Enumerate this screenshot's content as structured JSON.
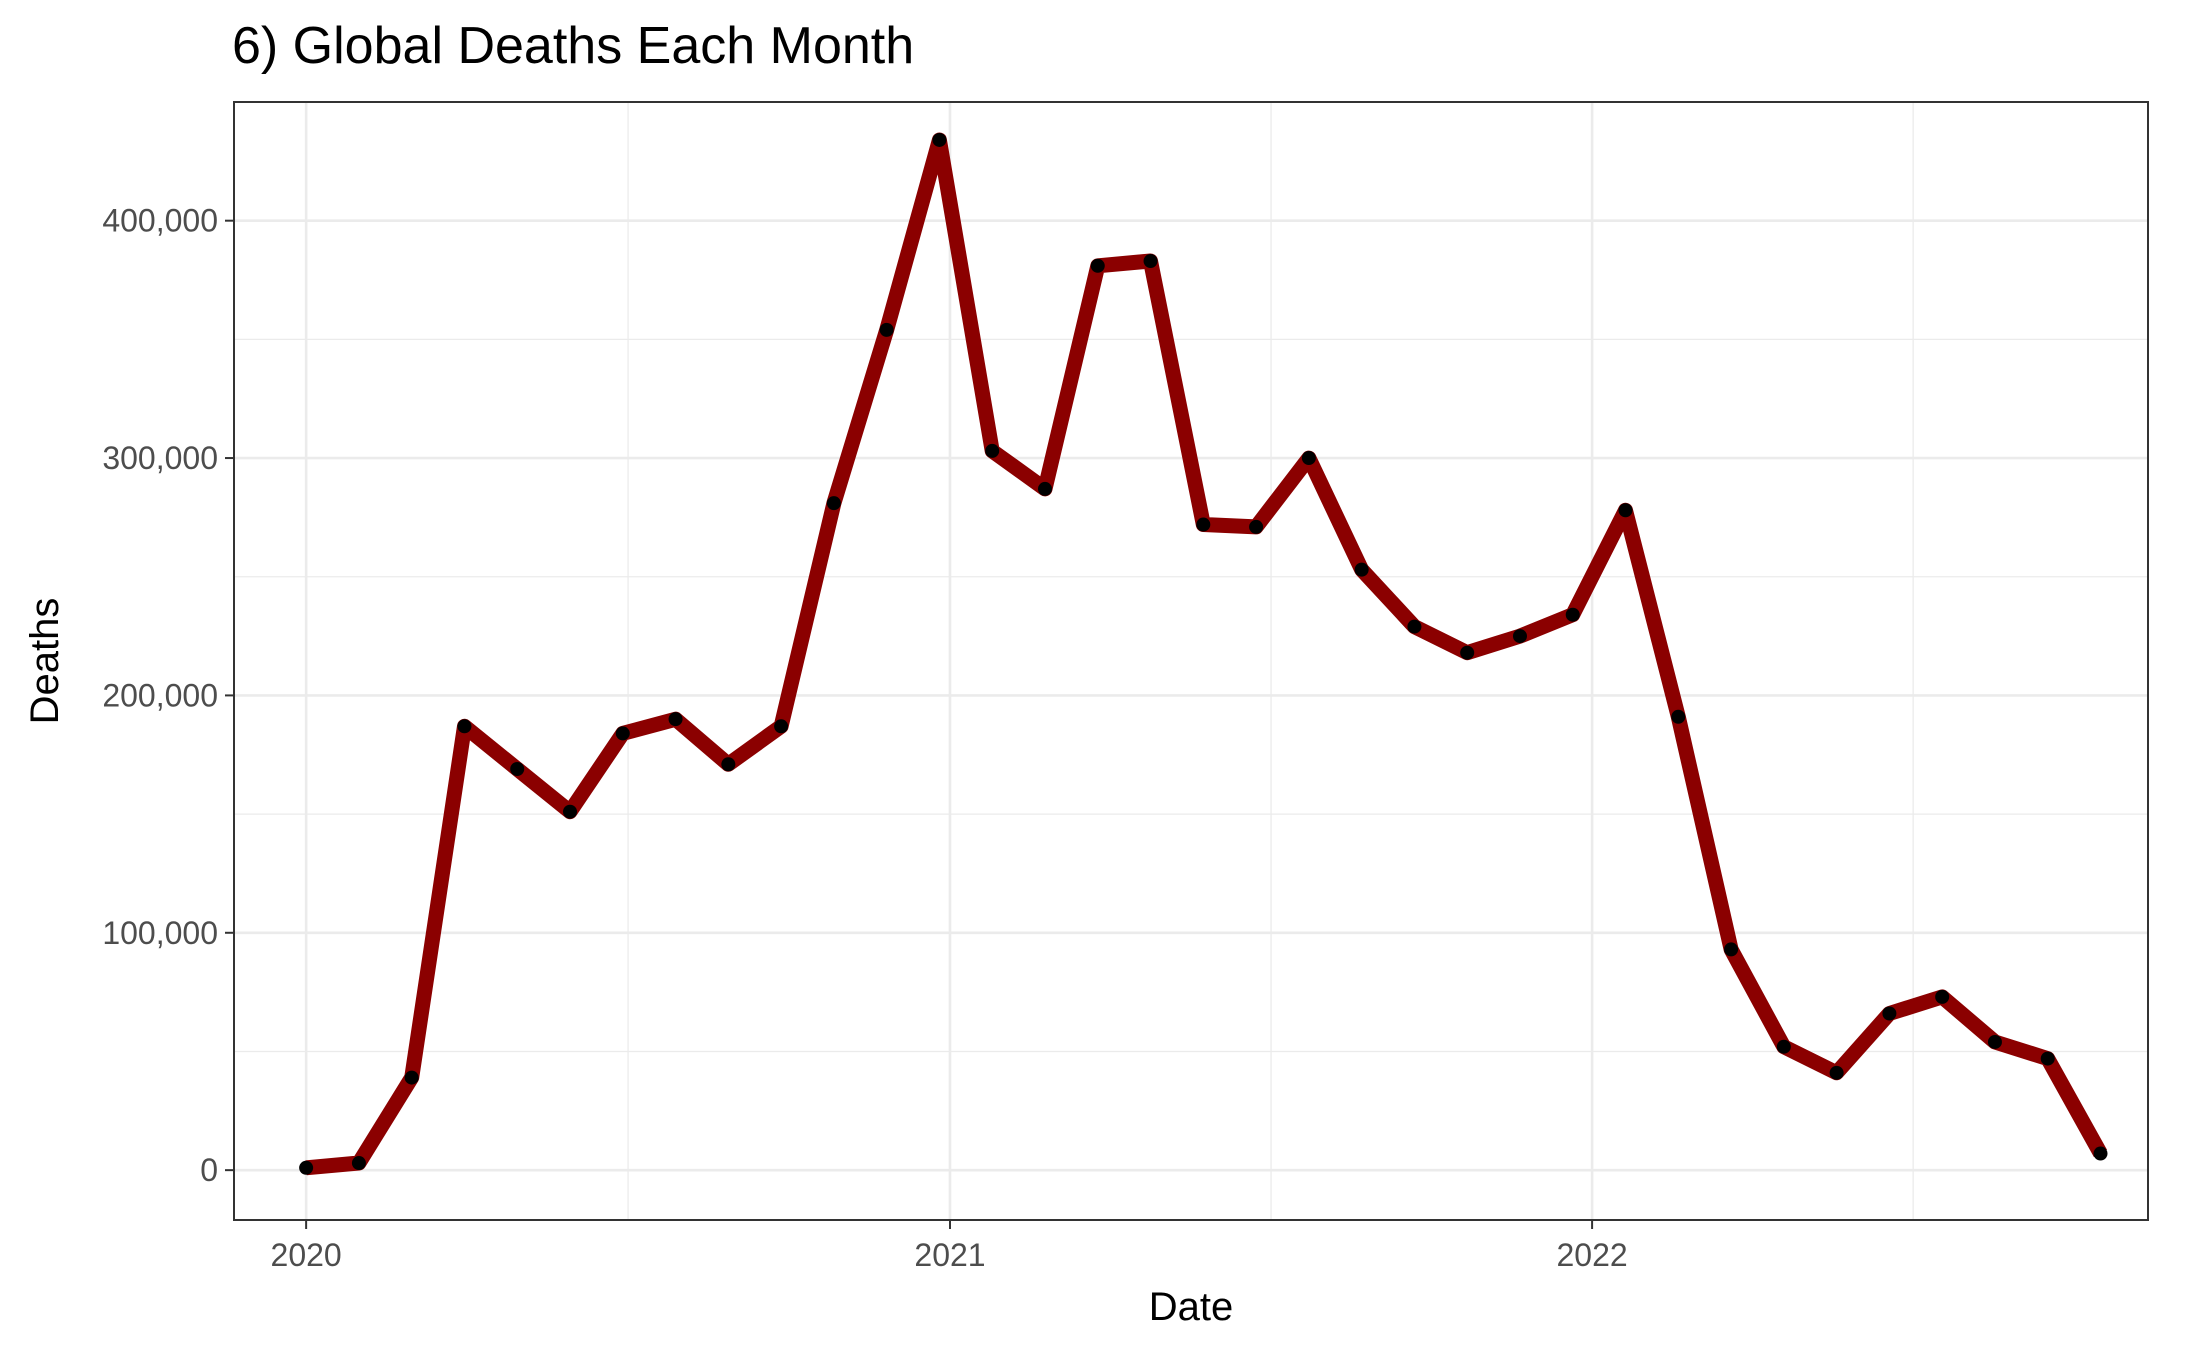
{
  "chart_data": {
    "type": "line",
    "title": "6) Global Deaths Each Month",
    "xlabel": "Date",
    "ylabel": "Deaths",
    "x_axis_type": "date",
    "xlim": [
      "2019-11-21",
      "2022-11-13"
    ],
    "ylim": [
      -21000,
      450000
    ],
    "x_ticks": [
      {
        "date": "2020-01-01",
        "label": "2020"
      },
      {
        "date": "2021-01-01",
        "label": "2021"
      },
      {
        "date": "2022-01-01",
        "label": "2022"
      }
    ],
    "y_ticks": [
      {
        "value": 0,
        "label": "0"
      },
      {
        "value": 100000,
        "label": "100,000"
      },
      {
        "value": 200000,
        "label": "200,000"
      },
      {
        "value": 300000,
        "label": "300,000"
      },
      {
        "value": 400000,
        "label": "400,000"
      }
    ],
    "grid": true,
    "line_color": "#8b0000",
    "point_color": "#000000",
    "series": [
      {
        "x": [
          "2020-01-01",
          "2020-01-31",
          "2020-03-01",
          "2020-03-31",
          "2020-04-30",
          "2020-05-30",
          "2020-06-29",
          "2020-07-29",
          "2020-08-28",
          "2020-09-27",
          "2020-10-27",
          "2020-11-26",
          "2020-12-26",
          "2021-01-25",
          "2021-02-24",
          "2021-03-26",
          "2021-04-25",
          "2021-05-25",
          "2021-06-24",
          "2021-07-24",
          "2021-08-23",
          "2021-09-22",
          "2021-10-22",
          "2021-11-21",
          "2021-12-21",
          "2022-01-20",
          "2022-02-19",
          "2022-03-21",
          "2022-04-20",
          "2022-05-20",
          "2022-06-19",
          "2022-07-19",
          "2022-08-18",
          "2022-09-17",
          "2022-10-17"
        ],
        "values": [
          1000,
          3000,
          39000,
          187000,
          169000,
          151000,
          184000,
          190000,
          171000,
          187000,
          281000,
          354000,
          434000,
          303000,
          287000,
          381000,
          383000,
          272000,
          271000,
          300000,
          253000,
          229000,
          218000,
          225000,
          234000,
          278000,
          191000,
          93000,
          52000,
          41000,
          66000,
          73000,
          54000,
          47000,
          7000
        ]
      }
    ]
  }
}
